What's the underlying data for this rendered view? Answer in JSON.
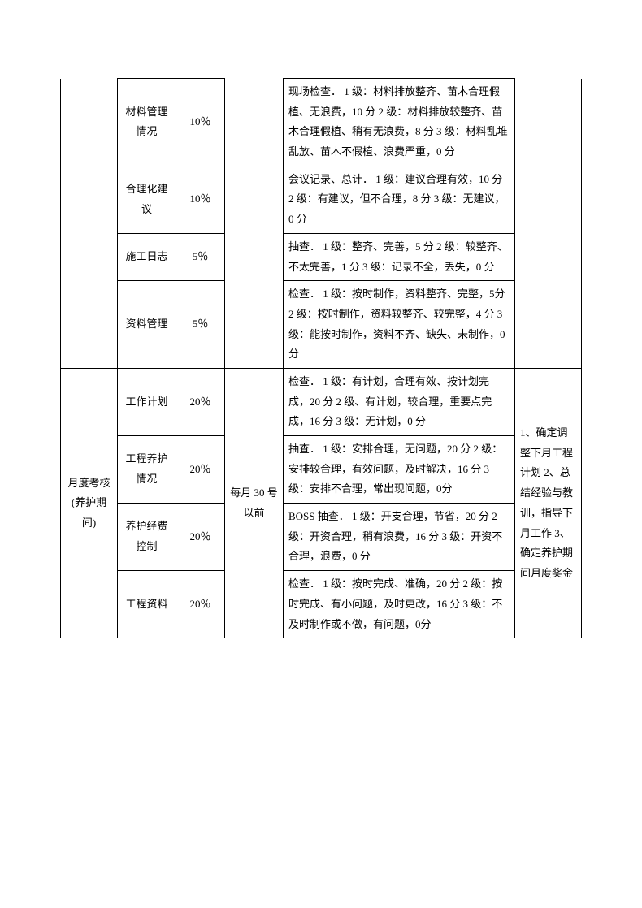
{
  "table": {
    "section1": {
      "timing_col_blank": "",
      "remarks_col_blank": "",
      "rows": [
        {
          "item": "材料管理情况",
          "weight": "10％",
          "criteria": "现场检查．\n1 级：材料排放整齐、苗木合理假植、无浪费，10 分\n2 级：材料排放较整齐、苗木合理假植、稍有无浪费，8 分\n3 级：材料乱堆乱放、苗木不假植、浪费严重，0 分"
        },
        {
          "item": "合理化建议",
          "weight": "10％",
          "criteria": "会议记录、总计．\n1 级：建议合理有效，10 分\n2 级：有建议，但不合理，8 分\n3 级：无建议，0 分"
        },
        {
          "item": "施工日志",
          "weight": "5％",
          "criteria": "抽查．\n1 级：整齐、完善，5 分\n2 级：较整齐、不太完善，1 分\n3 级：记录不全，丢失，0 分"
        },
        {
          "item": "资料管理",
          "weight": "5％",
          "criteria": "检查．\n1 级：按时制作，资料整齐、完整，5分\n2 级：按时制作，资料较整齐、较完整，4 分\n3 级：能按时制作，资料不齐、缺失、未制作，0 分"
        }
      ]
    },
    "section2": {
      "group": "月度考核(养护期间)",
      "timing": "每月 30 号以前",
      "remarks": "1、确定调整下月工程计划\n2、总结经验与教训，指导下月工作\n3、确定养护期间月度奖金",
      "rows": [
        {
          "item": "工作计划",
          "weight": "20％",
          "criteria": "检查．\n1 级：有计划，合理有效、按计划完成，20 分\n2 级、有计划，较合理，重要点完成，16 分\n3 级：无计划，0 分"
        },
        {
          "item": "工程养护情况",
          "weight": "20％",
          "criteria": "抽查．\n1 级：安排合理，无问题，20 分\n2 级：安排较合理，有效问题，及时解决，16 分\n3 级：安排不合理，常出现问题，0分"
        },
        {
          "item": "养护经费控制",
          "weight": "20％",
          "criteria": "BOSS 抽查．\n1 级：开支合理，节省，20 分\n2 级：开资合理，稍有浪费，16 分\n3 级：开资不合理，浪费，0 分"
        },
        {
          "item": "工程资料",
          "weight": "20％",
          "criteria": "检查．\n1 级：按时完成、准确，20 分\n2 级：按时完成、有小问题，及时更改，16 分\n3 级：不及时制作或不做，有问题，0分"
        }
      ]
    }
  }
}
